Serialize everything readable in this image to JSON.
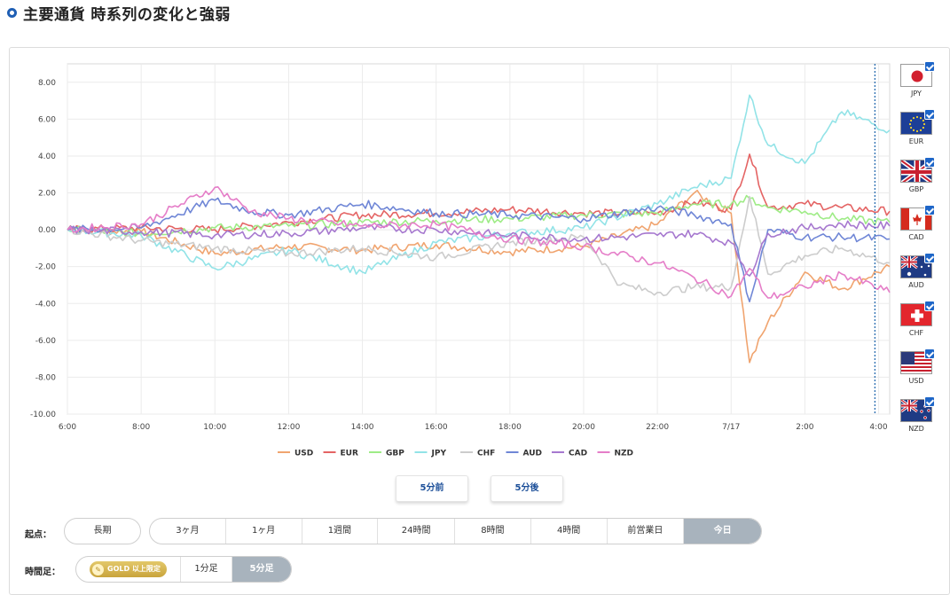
{
  "header": {
    "title": "主要通貨 時系列の変化と強弱"
  },
  "chart_data": {
    "type": "line",
    "x": [
      "6:00",
      "8:00",
      "10:00",
      "12:00",
      "14:00",
      "16:00",
      "18:00",
      "20:00",
      "22:00",
      "7/17",
      "2:00",
      "4:00"
    ],
    "y_ticks": [
      "8.00",
      "6.00",
      "4.00",
      "2.00",
      "0.00",
      "-2.00",
      "-4.00",
      "-6.00",
      "-8.00",
      "-10.00"
    ],
    "ylim": [
      -10,
      9
    ],
    "x_range_hours": [
      0,
      22.3
    ],
    "marker_x_hours": 21.9,
    "grid": true,
    "legend_position": "bottom",
    "series": [
      {
        "name": "USD",
        "color": "#f0a46f",
        "points": [
          [
            0,
            0
          ],
          [
            2,
            -0.1
          ],
          [
            4,
            -1.3
          ],
          [
            6,
            -0.9
          ],
          [
            8,
            -1.1
          ],
          [
            10,
            -0.8
          ],
          [
            12,
            -1.2
          ],
          [
            14,
            -0.9
          ],
          [
            16,
            0.3
          ],
          [
            17,
            2.0
          ],
          [
            18,
            0.9
          ],
          [
            18.5,
            -7.2
          ],
          [
            19,
            -5.0
          ],
          [
            20,
            -2.3
          ],
          [
            21,
            -3.2
          ],
          [
            22.3,
            -2.0
          ]
        ]
      },
      {
        "name": "EUR",
        "color": "#e46464",
        "points": [
          [
            0,
            0
          ],
          [
            2,
            0.1
          ],
          [
            4,
            0.0
          ],
          [
            6,
            0.4
          ],
          [
            8,
            0.8
          ],
          [
            10,
            0.9
          ],
          [
            12,
            1.1
          ],
          [
            14,
            0.9
          ],
          [
            16,
            0.9
          ],
          [
            17,
            1.5
          ],
          [
            18,
            1.1
          ],
          [
            18.5,
            4.1
          ],
          [
            19,
            1.2
          ],
          [
            20,
            1.4
          ],
          [
            21,
            1.2
          ],
          [
            22.3,
            1.0
          ]
        ]
      },
      {
        "name": "GBP",
        "color": "#9eec86",
        "points": [
          [
            0,
            0
          ],
          [
            2,
            -0.2
          ],
          [
            4,
            0.1
          ],
          [
            6,
            0.2
          ],
          [
            8,
            0.4
          ],
          [
            10,
            0.5
          ],
          [
            12,
            0.6
          ],
          [
            14,
            0.8
          ],
          [
            16,
            0.9
          ],
          [
            17,
            1.4
          ],
          [
            18,
            1.4
          ],
          [
            18.5,
            1.7
          ],
          [
            19,
            1.2
          ],
          [
            20,
            1.0
          ],
          [
            21,
            0.6
          ],
          [
            22.3,
            0.4
          ]
        ]
      },
      {
        "name": "JPY",
        "color": "#92e3e7",
        "points": [
          [
            0,
            0
          ],
          [
            2,
            -0.3
          ],
          [
            4,
            -2.1
          ],
          [
            6,
            -1.1
          ],
          [
            8,
            -2.3
          ],
          [
            10,
            -0.7
          ],
          [
            12,
            -0.2
          ],
          [
            14,
            0.1
          ],
          [
            16,
            1.4
          ],
          [
            17,
            2.3
          ],
          [
            18,
            2.8
          ],
          [
            18.5,
            7.3
          ],
          [
            19,
            4.6
          ],
          [
            20,
            3.6
          ],
          [
            21,
            6.4
          ],
          [
            22.3,
            5.4
          ]
        ]
      },
      {
        "name": "CHF",
        "color": "#cccccc",
        "points": [
          [
            0,
            0
          ],
          [
            2,
            -0.6
          ],
          [
            4,
            -1.0
          ],
          [
            6,
            -1.3
          ],
          [
            8,
            -1.0
          ],
          [
            10,
            -1.5
          ],
          [
            12,
            -0.7
          ],
          [
            14,
            -0.4
          ],
          [
            15,
            -3.0
          ],
          [
            16,
            -3.4
          ],
          [
            17,
            -3.1
          ],
          [
            18,
            -3.1
          ],
          [
            18.5,
            1.8
          ],
          [
            19,
            -2.4
          ],
          [
            20,
            -1.4
          ],
          [
            21,
            -1.0
          ],
          [
            22.3,
            -1.8
          ]
        ]
      },
      {
        "name": "AUD",
        "color": "#6f86d6",
        "points": [
          [
            0,
            0
          ],
          [
            2,
            0.1
          ],
          [
            4,
            1.6
          ],
          [
            5,
            1.0
          ],
          [
            6,
            0.8
          ],
          [
            8,
            1.4
          ],
          [
            10,
            0.9
          ],
          [
            12,
            0.8
          ],
          [
            14,
            0.6
          ],
          [
            16,
            1.2
          ],
          [
            17,
            0.8
          ],
          [
            18,
            0.3
          ],
          [
            18.5,
            -3.9
          ],
          [
            19,
            0.0
          ],
          [
            20,
            -0.4
          ],
          [
            21,
            -0.4
          ],
          [
            22.3,
            -0.5
          ]
        ]
      },
      {
        "name": "CAD",
        "color": "#a678cf",
        "points": [
          [
            0,
            0
          ],
          [
            2,
            -0.1
          ],
          [
            4,
            -0.3
          ],
          [
            6,
            -0.2
          ],
          [
            8,
            0.1
          ],
          [
            10,
            0.0
          ],
          [
            12,
            -0.3
          ],
          [
            14,
            -0.5
          ],
          [
            16,
            -0.3
          ],
          [
            17,
            -0.2
          ],
          [
            18,
            -0.7
          ],
          [
            18.5,
            -2.5
          ],
          [
            19,
            -0.2
          ],
          [
            20,
            0.1
          ],
          [
            21,
            0.3
          ],
          [
            22.3,
            0.2
          ]
        ]
      },
      {
        "name": "NZD",
        "color": "#e57dc8",
        "points": [
          [
            0,
            0
          ],
          [
            2,
            0.3
          ],
          [
            4,
            2.3
          ],
          [
            5,
            1.0
          ],
          [
            6,
            0.6
          ],
          [
            8,
            0.2
          ],
          [
            10,
            0.3
          ],
          [
            12,
            -0.5
          ],
          [
            14,
            -0.9
          ],
          [
            16,
            -1.8
          ],
          [
            17,
            -2.6
          ],
          [
            18,
            -3.6
          ],
          [
            18.5,
            -2.1
          ],
          [
            19,
            -3.7
          ],
          [
            20,
            -3.1
          ],
          [
            21,
            -2.4
          ],
          [
            22.3,
            -3.4
          ]
        ]
      }
    ]
  },
  "flags": [
    {
      "code": "JPY",
      "checked": true
    },
    {
      "code": "EUR",
      "checked": true
    },
    {
      "code": "GBP",
      "checked": true
    },
    {
      "code": "CAD",
      "checked": true
    },
    {
      "code": "AUD",
      "checked": true
    },
    {
      "code": "CHF",
      "checked": true
    },
    {
      "code": "USD",
      "checked": true
    },
    {
      "code": "NZD",
      "checked": true
    }
  ],
  "nav": {
    "prev": "5分前",
    "next": "5分後"
  },
  "start_point": {
    "label": "起点：",
    "long_term": "長期",
    "options": [
      {
        "label": "3ヶ月",
        "active": false
      },
      {
        "label": "1ヶ月",
        "active": false
      },
      {
        "label": "1週間",
        "active": false
      },
      {
        "label": "24時間",
        "active": false
      },
      {
        "label": "8時間",
        "active": false
      },
      {
        "label": "4時間",
        "active": false
      },
      {
        "label": "前営業日",
        "active": false
      },
      {
        "label": "今日",
        "active": true
      }
    ]
  },
  "timeframe": {
    "label": "時間足：",
    "gold_badge": "GOLD 以上限定",
    "options": [
      {
        "label": "1分足",
        "active": false
      },
      {
        "label": "5分足",
        "active": true
      }
    ]
  }
}
